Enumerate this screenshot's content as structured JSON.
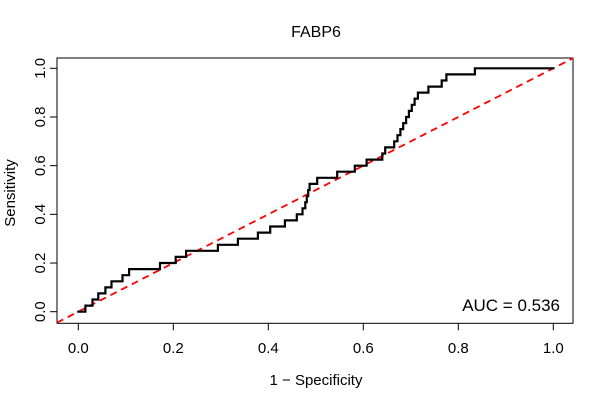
{
  "title": "FABP6",
  "annotation": {
    "auc_label": "AUC = 0.536"
  },
  "colors": {
    "background": "#ffffff",
    "curve": "#000000",
    "reference_line": "#ff0000",
    "axis": "#000000",
    "text": "#000000"
  },
  "chart_data": {
    "type": "line",
    "subtype": "roc-step-curve",
    "title": "FABP6",
    "xlabel": "1 − Specificity",
    "ylabel": "Sensitivity",
    "xlim": [
      0,
      1
    ],
    "ylim": [
      0,
      1
    ],
    "grid": false,
    "legend": "none",
    "x_ticks": [
      0.0,
      0.2,
      0.4,
      0.6,
      0.8,
      1.0
    ],
    "x_tick_labels": [
      "0.0",
      "0.2",
      "0.4",
      "0.6",
      "0.8",
      "1.0"
    ],
    "y_ticks": [
      0.0,
      0.2,
      0.4,
      0.6,
      0.8,
      1.0
    ],
    "y_tick_labels": [
      "0.0",
      "0.2",
      "0.4",
      "0.6",
      "0.8",
      "1.0"
    ],
    "auc": 0.536,
    "annotation_text": "AUC = 0.536",
    "series": [
      {
        "name": "ROC curve",
        "style": "step",
        "color": "#000000",
        "width": 2.2,
        "points": [
          [
            0.0,
            0.0
          ],
          [
            0.015,
            0.025
          ],
          [
            0.03,
            0.05
          ],
          [
            0.042,
            0.075
          ],
          [
            0.057,
            0.1
          ],
          [
            0.07,
            0.125
          ],
          [
            0.093,
            0.15
          ],
          [
            0.107,
            0.175
          ],
          [
            0.172,
            0.2
          ],
          [
            0.205,
            0.225
          ],
          [
            0.227,
            0.25
          ],
          [
            0.294,
            0.275
          ],
          [
            0.336,
            0.3
          ],
          [
            0.378,
            0.325
          ],
          [
            0.404,
            0.35
          ],
          [
            0.435,
            0.375
          ],
          [
            0.46,
            0.4
          ],
          [
            0.472,
            0.425
          ],
          [
            0.478,
            0.45
          ],
          [
            0.481,
            0.475
          ],
          [
            0.484,
            0.5
          ],
          [
            0.487,
            0.525
          ],
          [
            0.503,
            0.55
          ],
          [
            0.545,
            0.575
          ],
          [
            0.582,
            0.6
          ],
          [
            0.607,
            0.625
          ],
          [
            0.64,
            0.65
          ],
          [
            0.646,
            0.675
          ],
          [
            0.665,
            0.7
          ],
          [
            0.672,
            0.725
          ],
          [
            0.678,
            0.75
          ],
          [
            0.684,
            0.775
          ],
          [
            0.69,
            0.8
          ],
          [
            0.696,
            0.825
          ],
          [
            0.702,
            0.85
          ],
          [
            0.708,
            0.875
          ],
          [
            0.715,
            0.9
          ],
          [
            0.737,
            0.925
          ],
          [
            0.765,
            0.95
          ],
          [
            0.775,
            0.975
          ],
          [
            0.835,
            1.0
          ],
          [
            1.0,
            1.0
          ]
        ]
      },
      {
        "name": "Reference diagonal",
        "style": "dashed",
        "color": "#ff0000",
        "width": 1.8,
        "dash": "7,5",
        "points": [
          [
            0,
            0
          ],
          [
            1,
            1
          ]
        ]
      }
    ]
  }
}
